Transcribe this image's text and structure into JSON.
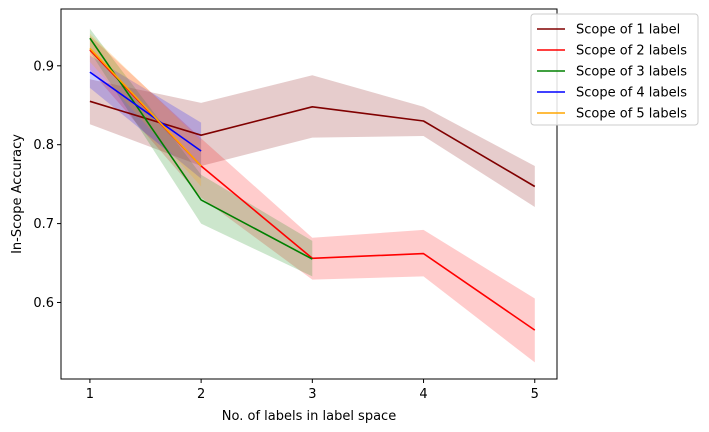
{
  "chart_data": {
    "type": "line",
    "title": "",
    "xlabel": "No. of labels in label space",
    "ylabel": "In-Scope Accuracy",
    "xlim": [
      0.74,
      5.2
    ],
    "ylim": [
      0.503,
      0.972
    ],
    "xticks": [
      1,
      2,
      3,
      4,
      5
    ],
    "yticks": [
      0.6,
      0.7,
      0.8,
      0.9
    ],
    "ytick_labels": [
      "0.6",
      "0.7",
      "0.8",
      "0.9"
    ],
    "grid": false,
    "legend_position": "top-right",
    "series": [
      {
        "name": "Scope of 1 label",
        "color": "#800000",
        "band_color": "#800000",
        "x": [
          1,
          2,
          3,
          4,
          5
        ],
        "y": [
          0.855,
          0.812,
          0.848,
          0.83,
          0.747
        ],
        "lower": [
          0.826,
          0.773,
          0.809,
          0.811,
          0.721
        ],
        "upper": [
          0.883,
          0.853,
          0.888,
          0.848,
          0.773
        ]
      },
      {
        "name": "Scope of 2 labels",
        "color": "#ff0000",
        "band_color": "#ff0000",
        "x": [
          1,
          2,
          3,
          4,
          5
        ],
        "y": [
          0.92,
          0.773,
          0.656,
          0.662,
          0.565
        ],
        "lower": [
          0.895,
          0.733,
          0.629,
          0.633,
          0.524
        ],
        "upper": [
          0.938,
          0.808,
          0.682,
          0.692,
          0.605
        ]
      },
      {
        "name": "Scope of 3 labels",
        "color": "#008000",
        "band_color": "#008000",
        "x": [
          1,
          2,
          3
        ],
        "y": [
          0.935,
          0.73,
          0.655
        ],
        "lower": [
          0.918,
          0.7,
          0.633
        ],
        "upper": [
          0.947,
          0.762,
          0.678
        ]
      },
      {
        "name": "Scope of 4 labels",
        "color": "#0000ff",
        "band_color": "#0000ff",
        "x": [
          1,
          2
        ],
        "y": [
          0.892,
          0.792
        ],
        "lower": [
          0.872,
          0.757
        ],
        "upper": [
          0.913,
          0.828
        ]
      },
      {
        "name": "Scope of 5 labels",
        "color": "#ffa500",
        "band_color": "#ffa500",
        "x": [
          1,
          2
        ],
        "y": [
          0.922,
          0.773
        ],
        "lower": [
          0.905,
          0.747
        ],
        "upper": [
          0.941,
          0.805
        ]
      }
    ]
  }
}
